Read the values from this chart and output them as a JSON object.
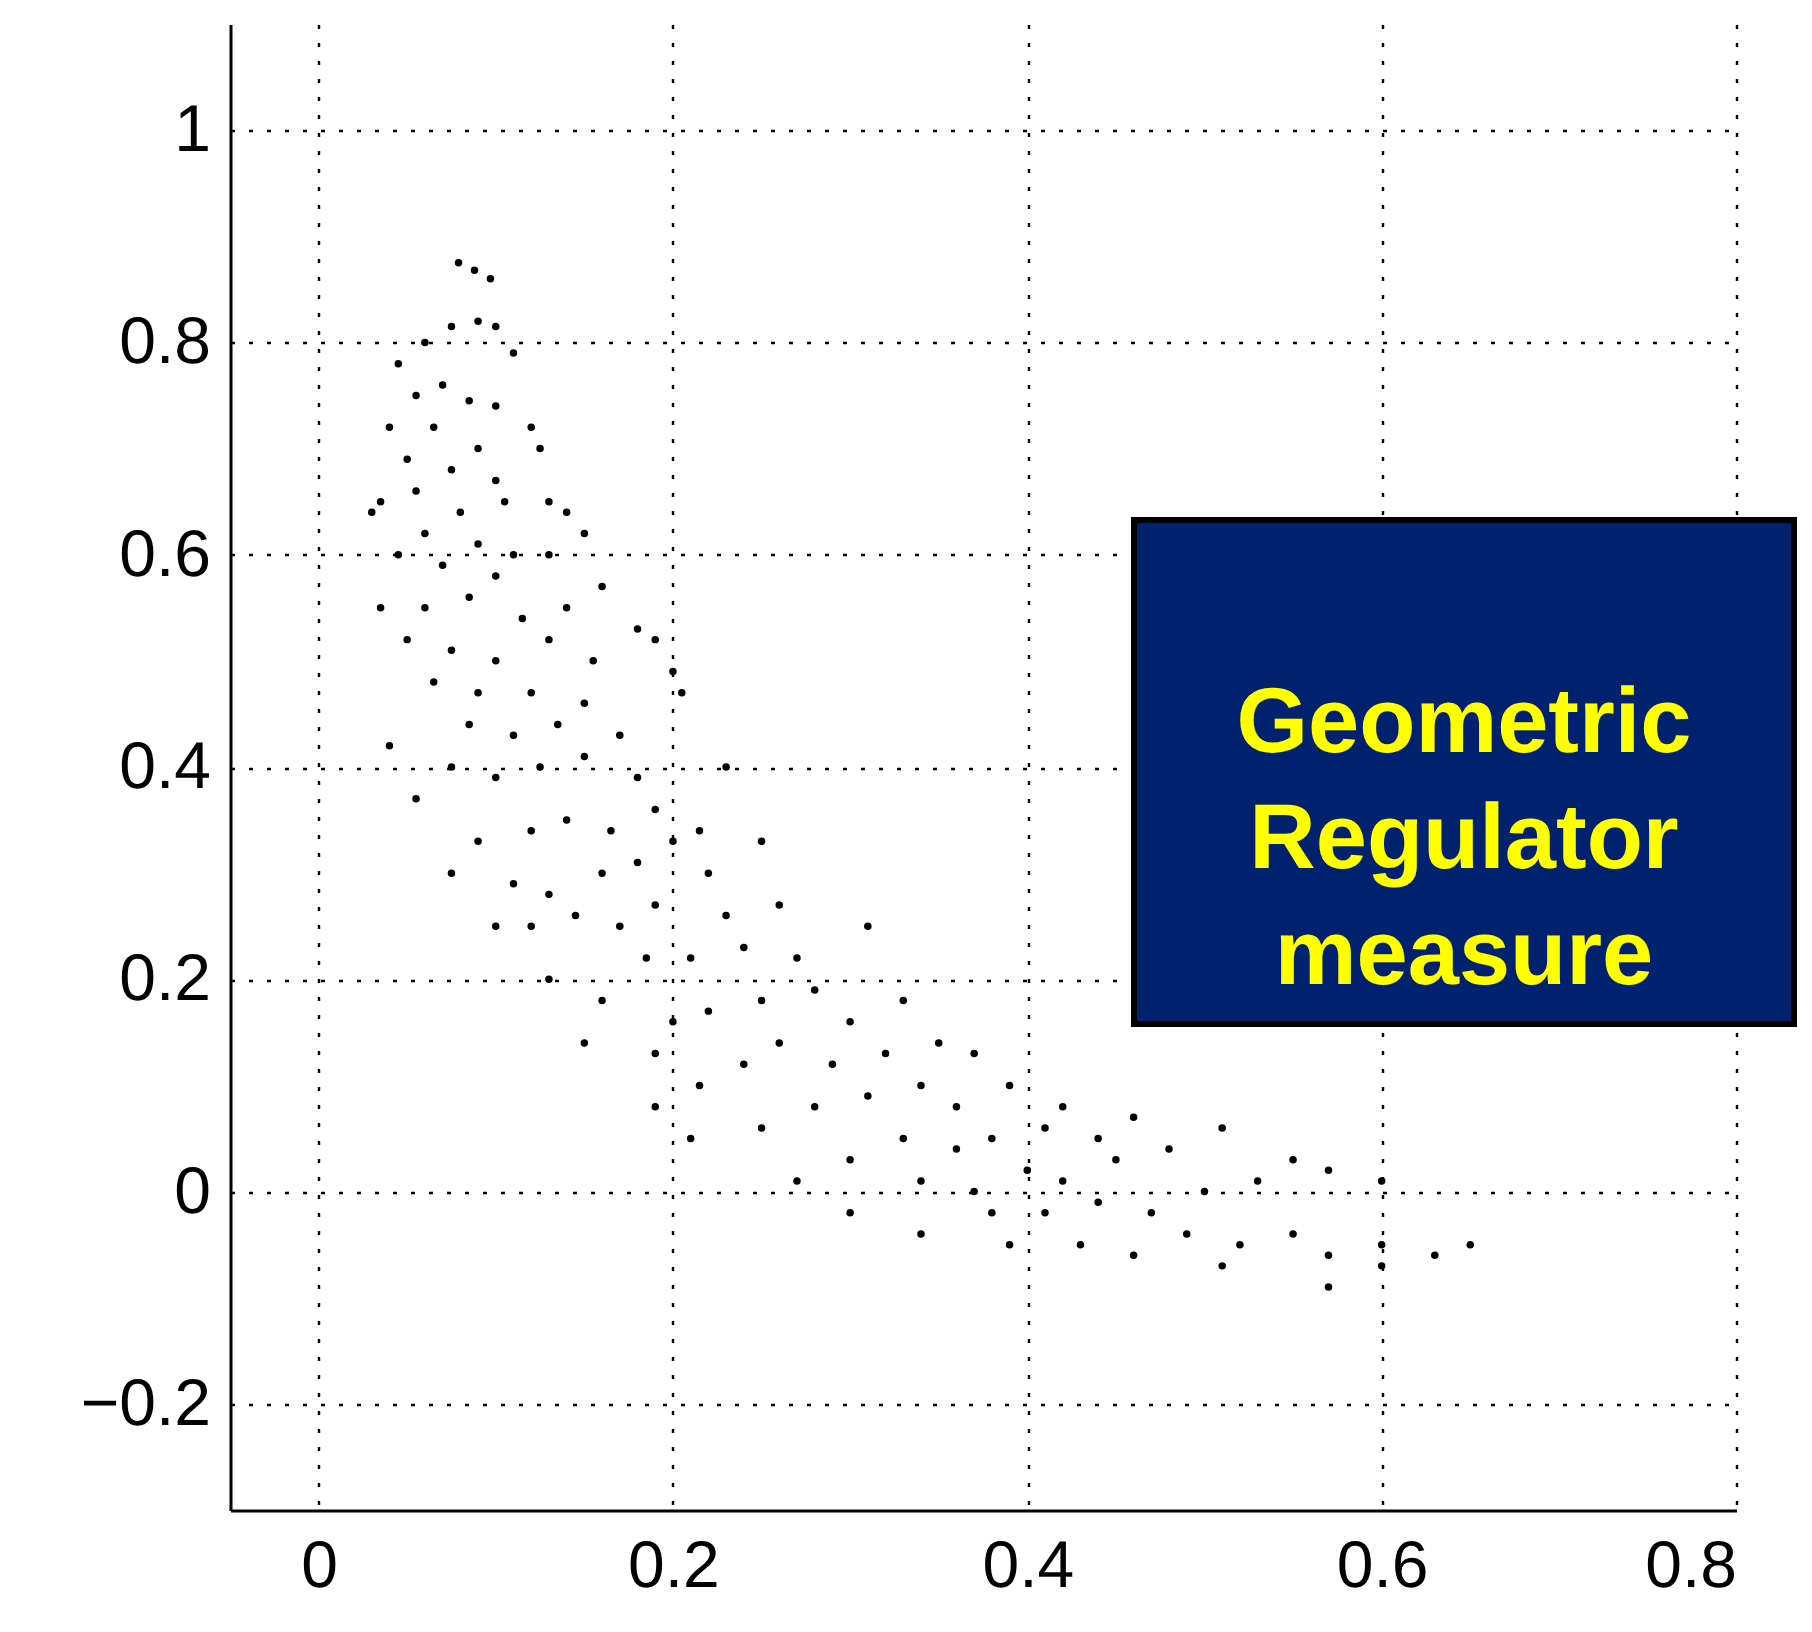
{
  "chart_data": {
    "type": "scatter",
    "xlim": [
      -0.05,
      0.8
    ],
    "ylim": [
      -0.3,
      1.1
    ],
    "xticks": [
      0,
      0.2,
      0.4,
      0.6,
      0.8
    ],
    "yticks": [
      -0.2,
      0,
      0.2,
      0.4,
      0.6,
      0.8,
      1
    ],
    "grid": true,
    "marker": "circle",
    "annotations": [
      "Geometric Regulator measure"
    ],
    "series": [
      {
        "color": "#000000",
        "x": [
          0.079,
          0.088,
          0.097,
          0.075,
          0.09,
          0.1,
          0.06,
          0.11,
          0.045,
          0.055,
          0.07,
          0.085,
          0.1,
          0.04,
          0.065,
          0.09,
          0.12,
          0.05,
          0.075,
          0.1,
          0.125,
          0.035,
          0.055,
          0.08,
          0.105,
          0.13,
          0.03,
          0.06,
          0.09,
          0.11,
          0.14,
          0.15,
          0.045,
          0.07,
          0.1,
          0.13,
          0.16,
          0.035,
          0.06,
          0.085,
          0.115,
          0.14,
          0.05,
          0.075,
          0.1,
          0.13,
          0.155,
          0.18,
          0.19,
          0.065,
          0.09,
          0.12,
          0.15,
          0.2,
          0.205,
          0.04,
          0.085,
          0.11,
          0.135,
          0.17,
          0.055,
          0.075,
          0.1,
          0.125,
          0.15,
          0.18,
          0.19,
          0.23,
          0.09,
          0.12,
          0.14,
          0.165,
          0.2,
          0.215,
          0.075,
          0.11,
          0.13,
          0.16,
          0.18,
          0.22,
          0.25,
          0.1,
          0.12,
          0.145,
          0.17,
          0.19,
          0.23,
          0.26,
          0.13,
          0.16,
          0.185,
          0.21,
          0.24,
          0.27,
          0.31,
          0.15,
          0.19,
          0.2,
          0.22,
          0.25,
          0.28,
          0.3,
          0.33,
          0.19,
          0.215,
          0.24,
          0.26,
          0.29,
          0.32,
          0.35,
          0.37,
          0.21,
          0.25,
          0.28,
          0.31,
          0.34,
          0.36,
          0.39,
          0.42,
          0.27,
          0.3,
          0.33,
          0.36,
          0.38,
          0.41,
          0.44,
          0.46,
          0.3,
          0.34,
          0.37,
          0.4,
          0.42,
          0.45,
          0.48,
          0.51,
          0.55,
          0.34,
          0.38,
          0.41,
          0.44,
          0.47,
          0.5,
          0.53,
          0.57,
          0.6,
          0.39,
          0.43,
          0.46,
          0.49,
          0.52,
          0.55,
          0.57,
          0.6,
          0.6,
          0.57,
          0.63,
          0.65,
          0.51
        ],
        "values": [
          0.875,
          0.868,
          0.86,
          0.815,
          0.82,
          0.815,
          0.8,
          0.79,
          0.78,
          0.75,
          0.76,
          0.745,
          0.74,
          0.72,
          0.72,
          0.7,
          0.72,
          0.69,
          0.68,
          0.67,
          0.7,
          0.65,
          0.66,
          0.64,
          0.65,
          0.65,
          0.64,
          0.62,
          0.61,
          0.6,
          0.64,
          0.62,
          0.6,
          0.59,
          0.58,
          0.6,
          0.57,
          0.55,
          0.55,
          0.56,
          0.54,
          0.55,
          0.52,
          0.51,
          0.5,
          0.52,
          0.5,
          0.53,
          0.52,
          0.48,
          0.47,
          0.47,
          0.46,
          0.49,
          0.47,
          0.42,
          0.44,
          0.43,
          0.44,
          0.43,
          0.37,
          0.4,
          0.39,
          0.4,
          0.41,
          0.39,
          0.36,
          0.4,
          0.33,
          0.34,
          0.35,
          0.34,
          0.33,
          0.34,
          0.3,
          0.29,
          0.28,
          0.3,
          0.31,
          0.3,
          0.33,
          0.25,
          0.25,
          0.26,
          0.25,
          0.27,
          0.26,
          0.27,
          0.2,
          0.18,
          0.22,
          0.22,
          0.23,
          0.22,
          0.25,
          0.14,
          0.13,
          0.16,
          0.17,
          0.18,
          0.19,
          0.16,
          0.18,
          0.08,
          0.1,
          0.12,
          0.14,
          0.12,
          0.13,
          0.14,
          0.13,
          0.05,
          0.06,
          0.08,
          0.09,
          0.1,
          0.08,
          0.1,
          0.08,
          0.01,
          0.03,
          0.05,
          0.04,
          0.05,
          0.06,
          0.05,
          0.07,
          -0.02,
          0.01,
          0.0,
          0.02,
          0.01,
          0.03,
          0.04,
          0.06,
          0.03,
          -0.04,
          -0.02,
          -0.02,
          -0.01,
          -0.02,
          0.0,
          0.01,
          0.02,
          0.01,
          -0.05,
          -0.05,
          -0.06,
          -0.04,
          -0.05,
          -0.04,
          -0.06,
          -0.05,
          -0.07,
          -0.09,
          -0.06,
          -0.05,
          -0.07
        ]
      }
    ]
  }
}
